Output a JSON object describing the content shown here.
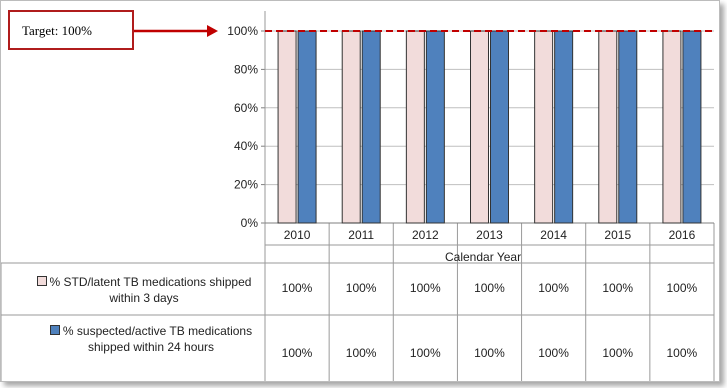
{
  "target": {
    "label": "Target: 100%",
    "value": 100,
    "color": "#c00000"
  },
  "chart_data": {
    "type": "bar",
    "categories": [
      "2010",
      "2011",
      "2012",
      "2013",
      "2014",
      "2015",
      "2016"
    ],
    "series": [
      {
        "name": "% STD/latent TB medications shipped within 3 days",
        "values": [
          100,
          100,
          100,
          100,
          100,
          100,
          100
        ],
        "color": "#f2dcdb"
      },
      {
        "name": "% suspected/active TB medications shipped within 24 hours",
        "values": [
          100,
          100,
          100,
          100,
          100,
          100,
          100
        ],
        "color": "#4f81bd"
      }
    ],
    "yticks": [
      "0%",
      "20%",
      "40%",
      "60%",
      "80%",
      "100%"
    ],
    "ylim": [
      0,
      100
    ],
    "xlabel": "Calendar Year",
    "ylabel": "",
    "grid": true,
    "table_rows": [
      [
        "100%",
        "100%",
        "100%",
        "100%",
        "100%",
        "100%",
        "100%"
      ],
      [
        "100%",
        "100%",
        "100%",
        "100%",
        "100%",
        "100%",
        "100%"
      ]
    ]
  }
}
